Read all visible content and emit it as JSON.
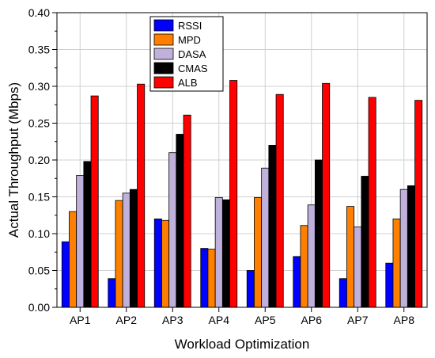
{
  "chart_data": {
    "type": "bar",
    "xlabel": "Workload Optimization",
    "ylabel": "Actual Throughput (Mbps)",
    "ylim": [
      0,
      0.4
    ],
    "yticks": [
      "0.00",
      "0.05",
      "0.10",
      "0.15",
      "0.20",
      "0.25",
      "0.30",
      "0.35",
      "0.40"
    ],
    "categories": [
      "AP1",
      "AP2",
      "AP3",
      "AP4",
      "AP5",
      "AP6",
      "AP7",
      "AP8"
    ],
    "grid": true,
    "legend_position": "top-center",
    "series": [
      {
        "name": "RSSI",
        "color": "#0000ff",
        "values": [
          0.089,
          0.039,
          0.12,
          0.08,
          0.05,
          0.069,
          0.039,
          0.06
        ]
      },
      {
        "name": "MPD",
        "color": "#ff8000",
        "values": [
          0.13,
          0.145,
          0.118,
          0.079,
          0.149,
          0.111,
          0.137,
          0.12
        ]
      },
      {
        "name": "DASA",
        "color": "#c0b0dc",
        "values": [
          0.179,
          0.155,
          0.21,
          0.149,
          0.189,
          0.139,
          0.109,
          0.16
        ]
      },
      {
        "name": "CMAS",
        "color": "#000000",
        "values": [
          0.198,
          0.16,
          0.235,
          0.146,
          0.22,
          0.2,
          0.178,
          0.165
        ]
      },
      {
        "name": "ALB",
        "color": "#ff0000",
        "values": [
          0.287,
          0.303,
          0.261,
          0.308,
          0.289,
          0.304,
          0.285,
          0.281
        ]
      }
    ]
  }
}
